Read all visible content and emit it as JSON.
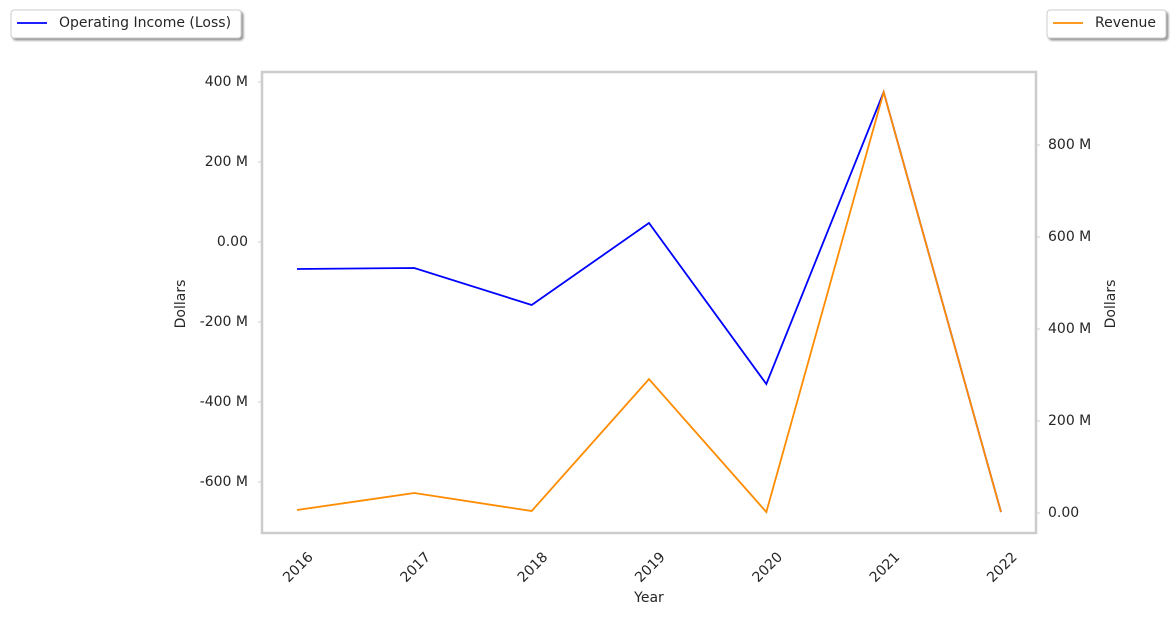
{
  "chart_data": {
    "type": "line",
    "categories": [
      "2016",
      "2017",
      "2018",
      "2019",
      "2020",
      "2021",
      "2022"
    ],
    "xlabel": "Year",
    "ylabel": "Dollars",
    "y2label": "Dollars",
    "series": [
      {
        "name": "Operating Income (Loss)",
        "color": "#0000ff",
        "legend": "upper left",
        "values": [
          -67500000,
          -65000000,
          -157500000,
          47500000,
          -355000000,
          375000000,
          -675000000
        ]
      },
      {
        "name": "Revenue",
        "color": "#ff8c00",
        "axis": "y2",
        "legend": "upper right",
        "values": [
          6500000,
          43500000,
          4300000,
          291000000,
          2000000,
          915000000,
          2000000
        ]
      }
    ],
    "ylim": [
      -727500000,
      425000000
    ],
    "yticks": [
      {
        "value": -600000000,
        "label": "-600 M"
      },
      {
        "value": -400000000,
        "label": "-400 M"
      },
      {
        "value": -200000000,
        "label": "-200 M"
      },
      {
        "value": 0,
        "label": "0.00"
      },
      {
        "value": 200000000,
        "label": "200 M"
      },
      {
        "value": 400000000,
        "label": "400 M"
      }
    ],
    "y2lim": [
      -43500000,
      958700000
    ],
    "y2ticks": [
      {
        "value": 0,
        "label": "0.00"
      },
      {
        "value": 200000000,
        "label": "200 M"
      },
      {
        "value": 400000000,
        "label": "400 M"
      },
      {
        "value": 600000000,
        "label": "600 M"
      },
      {
        "value": 800000000,
        "label": "800 M"
      }
    ]
  }
}
